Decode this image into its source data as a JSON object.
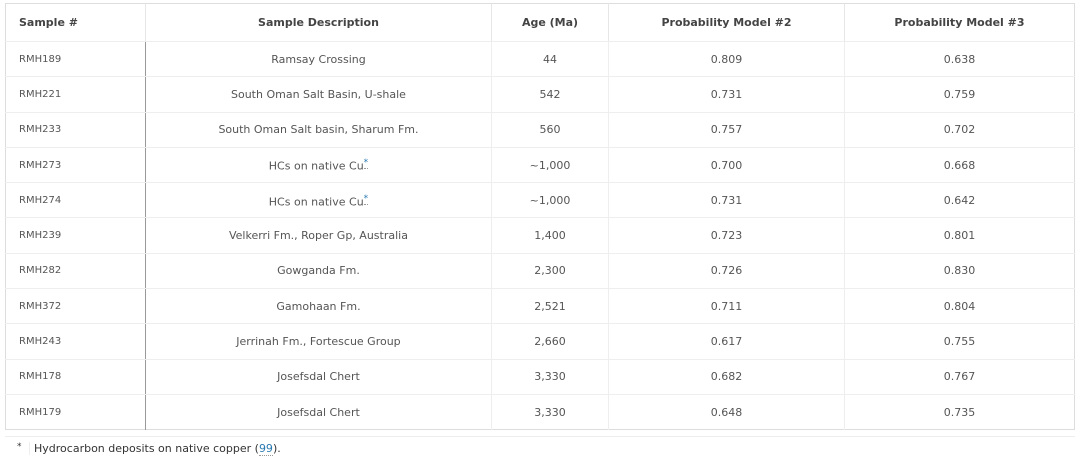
{
  "table": {
    "headers": [
      "Sample #",
      "Sample Description",
      "Age (Ma)",
      "Probability Model #2",
      "Probability Model #3"
    ],
    "rows": [
      {
        "sample": "RMH189",
        "description": "Ramsay Crossing",
        "note": "",
        "age": "44",
        "model2": "0.809",
        "model3": "0.638"
      },
      {
        "sample": "RMH221",
        "description": "South Oman Salt Basin, U-shale",
        "note": "",
        "age": "542",
        "model2": "0.731",
        "model3": "0.759"
      },
      {
        "sample": "RMH233",
        "description": "South Oman Salt basin, Sharum Fm.",
        "note": "",
        "age": "560",
        "model2": "0.757",
        "model3": "0.702"
      },
      {
        "sample": "RMH273",
        "description": "HCs on native Cu",
        "note": "*",
        "age": "~1,000",
        "model2": "0.700",
        "model3": "0.668"
      },
      {
        "sample": "RMH274",
        "description": "HCs on native Cu",
        "note": "*",
        "age": "~1,000",
        "model2": "0.731",
        "model3": "0.642"
      },
      {
        "sample": "RMH239",
        "description": "Velkerri Fm., Roper Gp, Australia",
        "note": "",
        "age": "1,400",
        "model2": "0.723",
        "model3": "0.801"
      },
      {
        "sample": "RMH282",
        "description": "Gowganda Fm.",
        "note": "",
        "age": "2,300",
        "model2": "0.726",
        "model3": "0.830"
      },
      {
        "sample": "RMH372",
        "description": "Gamohaan Fm.",
        "note": "",
        "age": "2,521",
        "model2": "0.711",
        "model3": "0.804"
      },
      {
        "sample": "RMH243",
        "description": "Jerrinah Fm., Fortescue Group",
        "note": "",
        "age": "2,660",
        "model2": "0.617",
        "model3": "0.755"
      },
      {
        "sample": "RMH178",
        "description": "Josefsdal Chert",
        "note": "",
        "age": "3,330",
        "model2": "0.682",
        "model3": "0.767"
      },
      {
        "sample": "RMH179",
        "description": "Josefsdal Chert",
        "note": "",
        "age": "3,330",
        "model2": "0.648",
        "model3": "0.735"
      }
    ]
  },
  "footnote": {
    "mark": "*",
    "text": "Hydrocarbon deposits on native copper (",
    "ref": "99",
    "end": ")."
  }
}
